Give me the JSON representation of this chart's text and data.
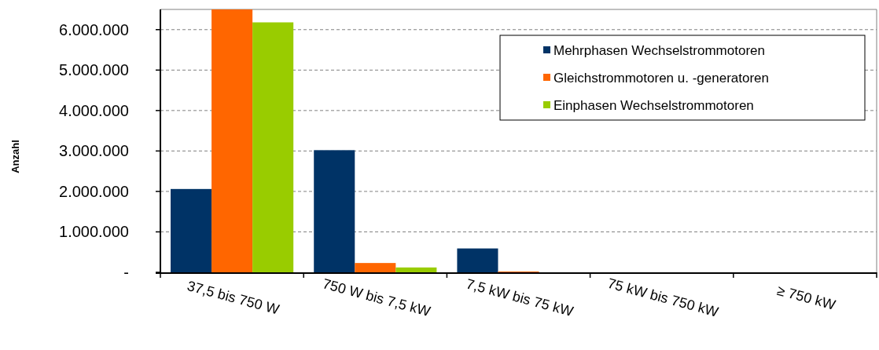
{
  "chart_data": {
    "type": "bar",
    "ylabel": "Anzahl",
    "categories": [
      "37,5 bis 750 W",
      "750 W bis 7,5 kW",
      "7,5 kW bis 75 kW",
      "75 kW bis 750 kW",
      "≥ 750 kW"
    ],
    "series": [
      {
        "name": "Mehrphasen Wechselstrommotoren",
        "color": "#003366",
        "values": [
          2060000,
          3020000,
          590000,
          0,
          0
        ]
      },
      {
        "name": "Gleichstrommotoren u. -generatoren",
        "color": "#ff6600",
        "values": [
          6500000,
          230000,
          20000,
          0,
          0
        ]
      },
      {
        "name": "Einphasen Wechselstrommotoren",
        "color": "#99cc00",
        "values": [
          6180000,
          120000,
          0,
          0,
          0
        ]
      }
    ],
    "ylim": [
      0,
      6500000
    ],
    "yticks": [
      {
        "value": 0,
        "label": "-"
      },
      {
        "value": 1000000,
        "label": "1.000.000"
      },
      {
        "value": 2000000,
        "label": "2.000.000"
      },
      {
        "value": 3000000,
        "label": "3.000.000"
      },
      {
        "value": 4000000,
        "label": "4.000.000"
      },
      {
        "value": 5000000,
        "label": "5.000.000"
      },
      {
        "value": 6000000,
        "label": "6.000.000"
      }
    ],
    "grid": "y",
    "legend": "top right"
  }
}
